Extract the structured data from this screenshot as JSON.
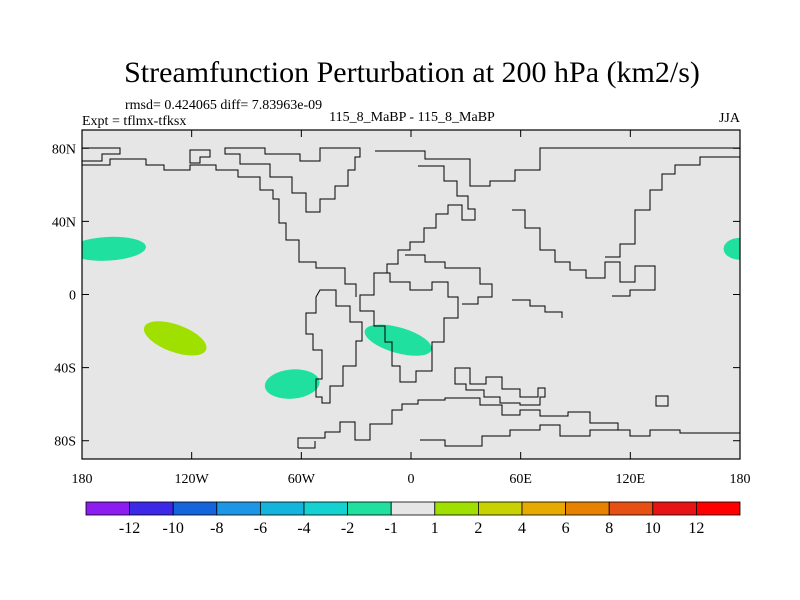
{
  "chart_data": {
    "type": "heatmap",
    "title": "Streamfunction Perturbation at 200 hPa (km2/s)",
    "stats_text": "rmsd= 0.424065 diff= 7.83963e-09",
    "left_label": "Expt = tflmx-tfksx",
    "center_label": "115_8_MaBP - 115_8_MaBP",
    "right_label": "JJA",
    "x_range": [
      -180,
      180
    ],
    "y_range": [
      -90,
      90
    ],
    "x_ticks": [
      {
        "value": -180,
        "label": "180"
      },
      {
        "value": -120,
        "label": "120W"
      },
      {
        "value": -60,
        "label": "60W"
      },
      {
        "value": 0,
        "label": "0"
      },
      {
        "value": 60,
        "label": "60E"
      },
      {
        "value": 120,
        "label": "120E"
      },
      {
        "value": 180,
        "label": "180"
      }
    ],
    "y_ticks": [
      {
        "value": 80,
        "label": "80N"
      },
      {
        "value": 40,
        "label": "40N"
      },
      {
        "value": 0,
        "label": "0"
      },
      {
        "value": -40,
        "label": "40S"
      },
      {
        "value": -80,
        "label": "80S"
      }
    ],
    "background_level": "-1 to 1",
    "anomaly_regions": [
      {
        "name": "north-pacific-west-negative",
        "level": "-2 to -1",
        "color": "#20e0a0",
        "lon": -166,
        "lat": 25,
        "lon_radius": 21,
        "lat_radius": 6.5,
        "angle": -3
      },
      {
        "name": "north-pacific-east-negative",
        "level": "-2 to -1",
        "color": "#20e0a0",
        "lon": 180,
        "lat": 25,
        "lon_radius": 9,
        "lat_radius": 6,
        "angle": 0
      },
      {
        "name": "south-pacific-positive",
        "level": "1 to 2",
        "color": "#a0e000",
        "lon": -129,
        "lat": -24,
        "lon_radius": 18,
        "lat_radius": 7.5,
        "angle": 20
      },
      {
        "name": "south-atlantic-negative",
        "level": "-2 to -1",
        "color": "#20e0a0",
        "lon": -7,
        "lat": -25,
        "lon_radius": 19,
        "lat_radius": 7,
        "angle": 16
      },
      {
        "name": "south-pacific-east-negative",
        "level": "-2 to -1",
        "color": "#20e0a0",
        "lon": -65,
        "lat": -49,
        "lon_radius": 15,
        "lat_radius": 8,
        "angle": -5
      }
    ],
    "colorbar": {
      "boundaries": [
        "-12",
        "-10",
        "-8",
        "-6",
        "-4",
        "-2",
        "-1",
        "1",
        "2",
        "4",
        "6",
        "8",
        "10",
        "12"
      ],
      "colors": [
        "#8c1cf0",
        "#3c28e6",
        "#1464dc",
        "#1e96e6",
        "#14b4dc",
        "#14d2d2",
        "#20e0a0",
        "#e6e6e6",
        "#a0e000",
        "#c8d200",
        "#e6aa00",
        "#e68200",
        "#e65014",
        "#e61414",
        "#ff0000"
      ]
    },
    "colors": {
      "background_field": "#e6e6e6",
      "coastline": "#000000"
    }
  }
}
